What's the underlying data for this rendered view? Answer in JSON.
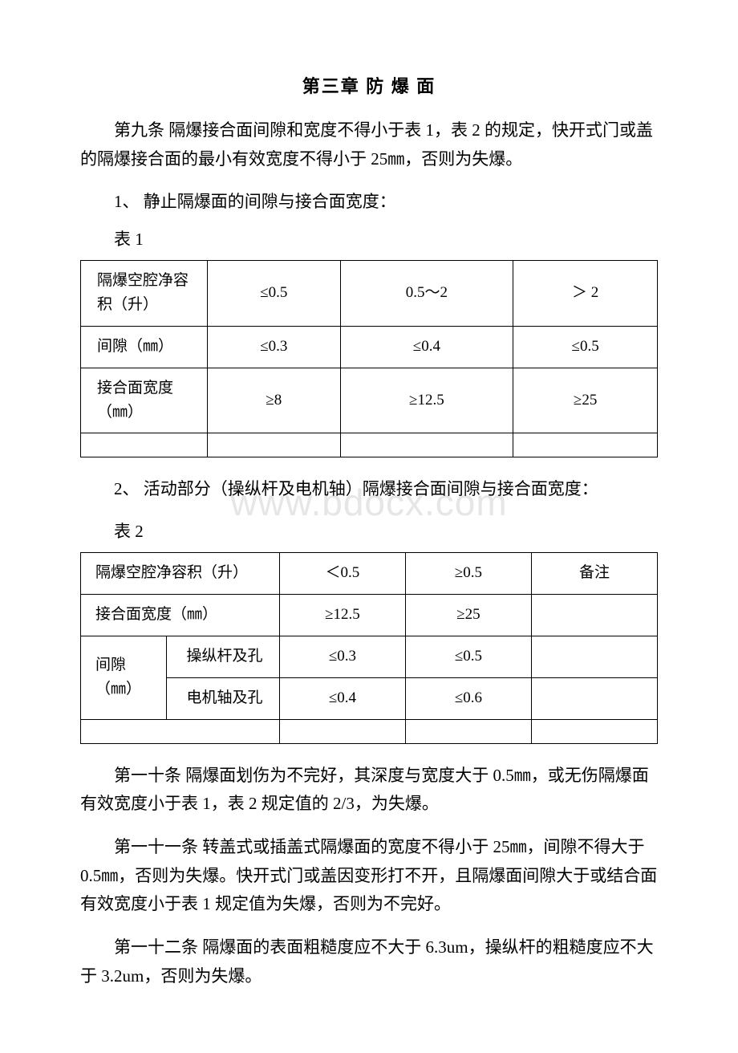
{
  "watermark": "www.bdocx.com",
  "chapter_title": "第三章 防 爆 面",
  "para1": "第九条 隔爆接合面间隙和宽度不得小于表 1，表 2 的规定，快开式门或盖的隔爆接合面的最小有效宽度不得小于 25㎜，否则为失爆。",
  "item1": "1、 静止隔爆面的间隙与接合面宽度：",
  "table1_label": "表 1",
  "table1": {
    "rows": [
      [
        "隔爆空腔净容积（升）",
        "≤0.5",
        "0.5～2",
        "＞ 2"
      ],
      [
        "间隙（㎜）",
        "≤0.3",
        "≤0.4",
        "≤0.5"
      ],
      [
        "接合面宽度（㎜）",
        "≥8",
        "≥12.5",
        "≥25"
      ]
    ]
  },
  "item2": "2、 活动部分（操纵杆及电机轴）隔爆接合面间隙与接合面宽度：",
  "table2_label": "表 2",
  "table2": {
    "header": [
      "隔爆空腔净容积（升）",
      "＜0.5",
      "≥0.5",
      "备注"
    ],
    "row2": [
      "接合面宽度（㎜）",
      "≥12.5",
      "≥25",
      ""
    ],
    "gap_label": "间隙（㎜）",
    "row3": [
      "操纵杆及孔",
      "≤0.3",
      "≤0.5",
      ""
    ],
    "row4": [
      "电机轴及孔",
      "≤0.4",
      "≤0.6",
      ""
    ]
  },
  "para10": "第一十条 隔爆面划伤为不完好，其深度与宽度大于 0.5㎜，或无伤隔爆面有效宽度小于表 1，表 2 规定值的 2/3，为失爆。",
  "para11": "第一十一条 转盖式或插盖式隔爆面的宽度不得小于 25㎜，间隙不得大于 0.5㎜，否则为失爆。快开式门或盖因变形打不开，且隔爆面间隙大于或结合面有效宽度小于表 1 规定值为失爆，否则为不完好。",
  "para12": "第一十二条 隔爆面的表面粗糙度应不大于 6.3um，操纵杆的粗糙度应不大于 3.2um，否则为失爆。"
}
